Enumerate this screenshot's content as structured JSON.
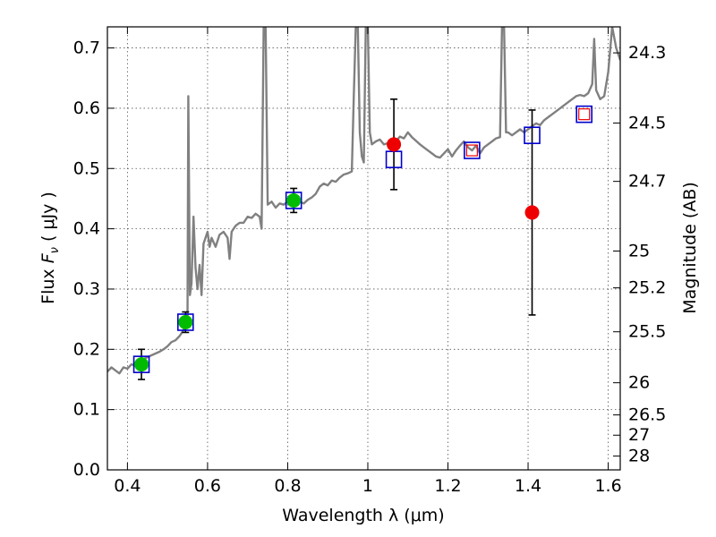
{
  "chart_data": {
    "type": "scatter",
    "title": "",
    "xlabel": "Wavelength  λ (μm)",
    "ylabel_prefix": "Flux  ",
    "ylabel_symbol": "F",
    "ylabel_sub": "ν",
    "ylabel_unit": "  ( μJy )",
    "y2label": "Magnitude (AB)",
    "xlim": [
      0.35,
      1.63
    ],
    "ylim": [
      0.0,
      0.735
    ],
    "grid": true,
    "x_ticks": [
      0.4,
      0.6,
      0.8,
      1.0,
      1.2,
      1.4,
      1.6
    ],
    "x_tick_labels": [
      "0.4",
      "0.6",
      "0.8",
      "1",
      "1.2",
      "1.4",
      "1.6"
    ],
    "y_ticks": [
      0.0,
      0.1,
      0.2,
      0.3,
      0.4,
      0.5,
      0.6,
      0.7
    ],
    "y_tick_labels": [
      "0.0",
      "0.1",
      "0.2",
      "0.3",
      "0.4",
      "0.5",
      "0.6",
      "0.7"
    ],
    "mag_ticks": [
      24.3,
      24.5,
      24.7,
      25,
      25.2,
      25.5,
      26,
      26.5,
      27,
      28
    ],
    "mag_tick_labels": [
      "24.3",
      "24.5",
      "24.7",
      "25",
      "25.2",
      "25.5",
      "26",
      "26.5",
      "27",
      "28"
    ],
    "colors": {
      "template": "#808080",
      "model": "#0000cc",
      "optical": "#00bb00",
      "nir": "#ee0000",
      "errorbar": "#000000",
      "grid": "#555555"
    },
    "template_spectrum": [
      [
        0.35,
        0.163
      ],
      [
        0.36,
        0.17
      ],
      [
        0.37,
        0.165
      ],
      [
        0.38,
        0.16
      ],
      [
        0.39,
        0.17
      ],
      [
        0.4,
        0.168
      ],
      [
        0.41,
        0.175
      ],
      [
        0.42,
        0.173
      ],
      [
        0.43,
        0.18
      ],
      [
        0.44,
        0.184
      ],
      [
        0.45,
        0.187
      ],
      [
        0.46,
        0.19
      ],
      [
        0.47,
        0.193
      ],
      [
        0.48,
        0.196
      ],
      [
        0.49,
        0.2
      ],
      [
        0.5,
        0.205
      ],
      [
        0.51,
        0.212
      ],
      [
        0.52,
        0.215
      ],
      [
        0.53,
        0.222
      ],
      [
        0.54,
        0.232
      ],
      [
        0.545,
        0.244
      ],
      [
        0.55,
        0.25
      ],
      [
        0.552,
        0.62
      ],
      [
        0.556,
        0.29
      ],
      [
        0.56,
        0.31
      ],
      [
        0.565,
        0.42
      ],
      [
        0.57,
        0.335
      ],
      [
        0.575,
        0.3
      ],
      [
        0.58,
        0.34
      ],
      [
        0.585,
        0.29
      ],
      [
        0.59,
        0.375
      ],
      [
        0.6,
        0.395
      ],
      [
        0.605,
        0.37
      ],
      [
        0.61,
        0.385
      ],
      [
        0.62,
        0.37
      ],
      [
        0.63,
        0.39
      ],
      [
        0.64,
        0.395
      ],
      [
        0.65,
        0.385
      ],
      [
        0.655,
        0.35
      ],
      [
        0.66,
        0.395
      ],
      [
        0.67,
        0.405
      ],
      [
        0.68,
        0.41
      ],
      [
        0.69,
        0.41
      ],
      [
        0.7,
        0.42
      ],
      [
        0.71,
        0.418
      ],
      [
        0.72,
        0.425
      ],
      [
        0.73,
        0.42
      ],
      [
        0.735,
        0.4
      ],
      [
        0.74,
        0.735
      ],
      [
        0.745,
        0.735
      ],
      [
        0.75,
        0.44
      ],
      [
        0.76,
        0.445
      ],
      [
        0.77,
        0.435
      ],
      [
        0.78,
        0.442
      ],
      [
        0.79,
        0.44
      ],
      [
        0.8,
        0.445
      ],
      [
        0.81,
        0.447
      ],
      [
        0.82,
        0.45
      ],
      [
        0.83,
        0.445
      ],
      [
        0.84,
        0.442
      ],
      [
        0.85,
        0.448
      ],
      [
        0.86,
        0.452
      ],
      [
        0.87,
        0.458
      ],
      [
        0.88,
        0.47
      ],
      [
        0.89,
        0.475
      ],
      [
        0.9,
        0.472
      ],
      [
        0.91,
        0.48
      ],
      [
        0.92,
        0.478
      ],
      [
        0.93,
        0.485
      ],
      [
        0.94,
        0.49
      ],
      [
        0.95,
        0.492
      ],
      [
        0.96,
        0.495
      ],
      [
        0.965,
        0.62
      ],
      [
        0.97,
        0.735
      ],
      [
        0.975,
        0.735
      ],
      [
        0.98,
        0.56
      ],
      [
        0.985,
        0.52
      ],
      [
        0.99,
        0.51
      ],
      [
        0.995,
        0.735
      ],
      [
        1.0,
        0.735
      ],
      [
        1.005,
        0.56
      ],
      [
        1.01,
        0.54
      ],
      [
        1.02,
        0.545
      ],
      [
        1.03,
        0.548
      ],
      [
        1.04,
        0.54
      ],
      [
        1.05,
        0.542
      ],
      [
        1.06,
        0.548
      ],
      [
        1.07,
        0.545
      ],
      [
        1.08,
        0.553
      ],
      [
        1.09,
        0.55
      ],
      [
        1.1,
        0.56
      ],
      [
        1.11,
        0.552
      ],
      [
        1.12,
        0.546
      ],
      [
        1.13,
        0.54
      ],
      [
        1.14,
        0.535
      ],
      [
        1.15,
        0.53
      ],
      [
        1.16,
        0.525
      ],
      [
        1.17,
        0.52
      ],
      [
        1.18,
        0.518
      ],
      [
        1.19,
        0.525
      ],
      [
        1.2,
        0.532
      ],
      [
        1.21,
        0.52
      ],
      [
        1.22,
        0.53
      ],
      [
        1.23,
        0.538
      ],
      [
        1.24,
        0.545
      ],
      [
        1.25,
        0.535
      ],
      [
        1.26,
        0.53
      ],
      [
        1.27,
        0.538
      ],
      [
        1.28,
        0.525
      ],
      [
        1.29,
        0.535
      ],
      [
        1.3,
        0.54
      ],
      [
        1.31,
        0.545
      ],
      [
        1.32,
        0.55
      ],
      [
        1.33,
        0.552
      ],
      [
        1.335,
        0.735
      ],
      [
        1.34,
        0.735
      ],
      [
        1.345,
        0.56
      ],
      [
        1.35,
        0.56
      ],
      [
        1.36,
        0.555
      ],
      [
        1.37,
        0.56
      ],
      [
        1.38,
        0.565
      ],
      [
        1.39,
        0.56
      ],
      [
        1.4,
        0.565
      ],
      [
        1.41,
        0.57
      ],
      [
        1.42,
        0.575
      ],
      [
        1.43,
        0.572
      ],
      [
        1.44,
        0.58
      ],
      [
        1.45,
        0.585
      ],
      [
        1.46,
        0.59
      ],
      [
        1.47,
        0.595
      ],
      [
        1.48,
        0.6
      ],
      [
        1.49,
        0.605
      ],
      [
        1.5,
        0.61
      ],
      [
        1.51,
        0.615
      ],
      [
        1.52,
        0.62
      ],
      [
        1.53,
        0.622
      ],
      [
        1.54,
        0.62
      ],
      [
        1.55,
        0.625
      ],
      [
        1.56,
        0.64
      ],
      [
        1.565,
        0.715
      ],
      [
        1.57,
        0.63
      ],
      [
        1.58,
        0.615
      ],
      [
        1.59,
        0.62
      ],
      [
        1.6,
        0.66
      ],
      [
        1.61,
        0.735
      ],
      [
        1.62,
        0.7
      ],
      [
        1.63,
        0.68
      ]
    ],
    "model_photometry": [
      {
        "x": 0.435,
        "y": 0.175
      },
      {
        "x": 0.545,
        "y": 0.245
      },
      {
        "x": 0.815,
        "y": 0.447
      },
      {
        "x": 1.065,
        "y": 0.515
      },
      {
        "x": 1.26,
        "y": 0.53
      },
      {
        "x": 1.41,
        "y": 0.555
      },
      {
        "x": 1.54,
        "y": 0.59
      }
    ],
    "optical_detections": [
      {
        "x": 0.435,
        "y": 0.175,
        "err": 0.025
      },
      {
        "x": 0.545,
        "y": 0.245,
        "err": 0.017
      },
      {
        "x": 0.815,
        "y": 0.447,
        "err": 0.02
      }
    ],
    "nir_detections": [
      {
        "x": 1.065,
        "y": 0.54,
        "err": 0.075
      },
      {
        "x": 1.41,
        "y": 0.427,
        "err": 0.17
      }
    ],
    "upper_limits": [
      {
        "x": 1.26,
        "y": 0.53
      },
      {
        "x": 1.54,
        "y": 0.59
      }
    ]
  }
}
